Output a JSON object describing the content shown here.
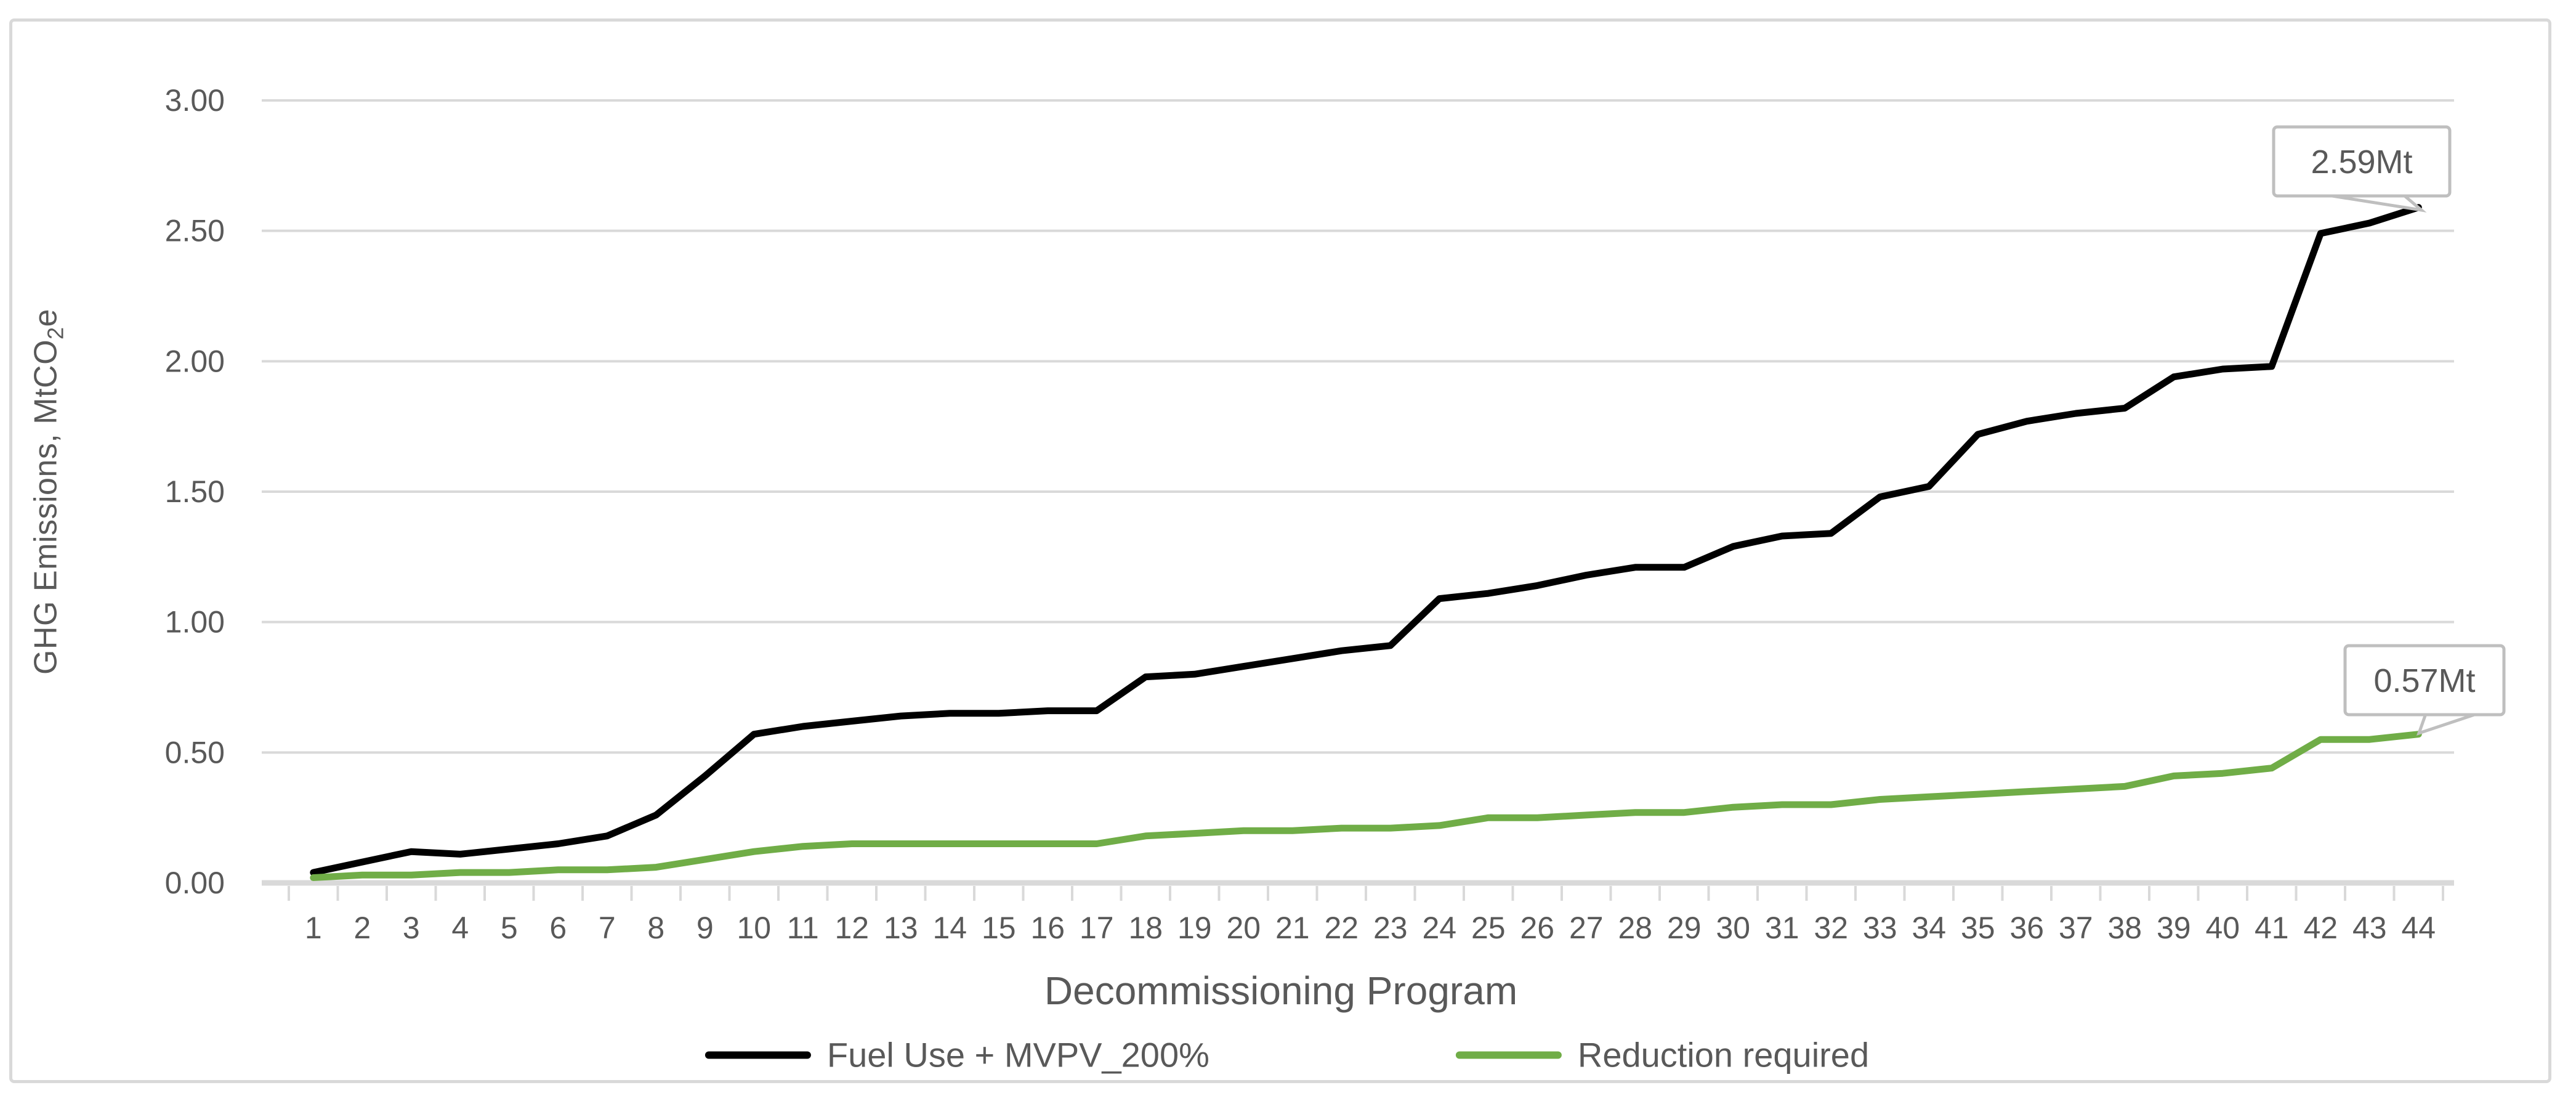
{
  "chart_data": {
    "type": "line",
    "title": "",
    "xlabel": "Decommissioning Program",
    "ylabel": "GHG Emissions, MtCO2e",
    "ylabel_parts": {
      "pre": "GHG Emissions, MtCO",
      "sub": "2",
      "post": "e"
    },
    "categories": [
      "1",
      "2",
      "3",
      "4",
      "5",
      "6",
      "7",
      "8",
      "9",
      "10",
      "11",
      "12",
      "13",
      "14",
      "15",
      "16",
      "17",
      "18",
      "19",
      "20",
      "21",
      "22",
      "23",
      "24",
      "25",
      "26",
      "27",
      "28",
      "29",
      "30",
      "31",
      "32",
      "33",
      "34",
      "35",
      "36",
      "37",
      "38",
      "39",
      "40",
      "41",
      "42",
      "43",
      "44"
    ],
    "series": [
      {
        "name": "Fuel Use + MVPV_200%",
        "color": "#000000",
        "values": [
          0.04,
          0.08,
          0.12,
          0.11,
          0.13,
          0.15,
          0.18,
          0.26,
          0.41,
          0.57,
          0.6,
          0.62,
          0.64,
          0.65,
          0.65,
          0.66,
          0.66,
          0.79,
          0.8,
          0.83,
          0.86,
          0.89,
          0.91,
          1.09,
          1.11,
          1.14,
          1.18,
          1.21,
          1.21,
          1.29,
          1.33,
          1.34,
          1.48,
          1.52,
          1.72,
          1.77,
          1.8,
          1.82,
          1.94,
          1.97,
          1.98,
          2.49,
          2.53,
          2.59
        ]
      },
      {
        "name": "Reduction required",
        "color": "#70AD47",
        "values": [
          0.02,
          0.03,
          0.03,
          0.04,
          0.04,
          0.05,
          0.05,
          0.06,
          0.09,
          0.12,
          0.14,
          0.15,
          0.15,
          0.15,
          0.15,
          0.15,
          0.15,
          0.18,
          0.19,
          0.2,
          0.2,
          0.21,
          0.21,
          0.22,
          0.25,
          0.25,
          0.26,
          0.27,
          0.27,
          0.29,
          0.3,
          0.3,
          0.32,
          0.33,
          0.34,
          0.35,
          0.36,
          0.37,
          0.41,
          0.42,
          0.44,
          0.55,
          0.55,
          0.57
        ]
      }
    ],
    "ylim": [
      0,
      3
    ],
    "ytick_step": 0.5,
    "ytick_labels": [
      "0.00",
      "0.50",
      "1.00",
      "1.50",
      "2.00",
      "2.50",
      "3.00"
    ],
    "grid": true,
    "legend_position": "bottom",
    "annotations": [
      {
        "series": "Fuel Use + MVPV_200%",
        "point": 44,
        "label": "2.59Mt"
      },
      {
        "series": "Reduction required",
        "point": 44,
        "label": "0.57Mt"
      }
    ]
  },
  "colors": {
    "background": "#FFFFFF",
    "frame_border": "#D9D9D9",
    "gridline": "#D9D9D9",
    "axis_line": "#D9D9D9",
    "tick_mark": "#D9D9D9",
    "axis_text": "#595959",
    "callout_border": "#BFBFBF",
    "callout_fill": "#FFFFFF",
    "fuel_line": "#000000",
    "reduction_line": "#70AD47"
  }
}
